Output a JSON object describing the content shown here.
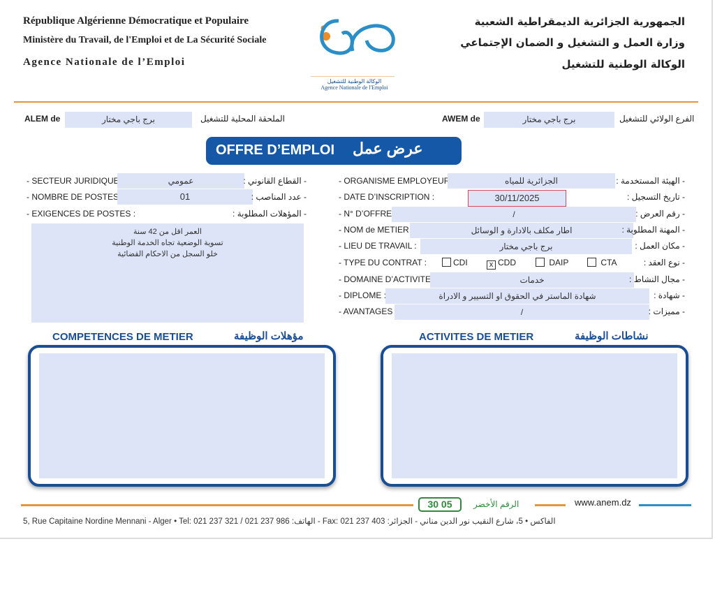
{
  "header": {
    "left_lines": [
      "République Algérienne Démocratique et Populaire",
      "Ministère du Travail, de l'Emploi et de La Sécurité Sociale",
      "Agence  Nationale  de  l’Emploi"
    ],
    "right_lines": [
      "الجمهورية الجزائرية الديمقراطية الشعبية",
      "وزارة العمل و التشغيل و الضمان الإجتماعي",
      "الوكالة الوطنية للتشغيل"
    ],
    "logo_ar": "الوكالة الوطنية للتشغيل",
    "logo_fr": "Agence Nationale de l'Emploi"
  },
  "colors": {
    "brand_blue": "#1a4e94",
    "accent_orange": "#e8943a",
    "field_fill": "#dde4f8",
    "green": "#2e8b3a"
  },
  "alem": {
    "label_fr": "ALEM de",
    "value": "برج باجي مختار",
    "label_ar": "الملحقة المحلية للتشغيل"
  },
  "awem": {
    "label_fr": "AWEM de",
    "value": "برج باجي مختار",
    "label_ar": "الفرع الولائي للتشغيل"
  },
  "title": {
    "fr": "OFFRE D’EMPLOI",
    "ar": "عرض عمل"
  },
  "left": {
    "secteur": {
      "label_fr": "- SECTEUR JURIDIQUE :",
      "label_ar": "- القطاع القانوني :",
      "value": "عمومي"
    },
    "postes": {
      "label_fr": "- NOMBRE DE POSTES :",
      "label_ar": "- عدد المناصب :",
      "value": "01"
    },
    "exigences": {
      "label_fr": "- EXIGENCES DE POSTES :",
      "label_ar": "- المؤهلات المطلوبة :",
      "lines": [
        "العمر اقل من 42 سنة",
        "تسوية الوضعية تجاه الخدمة الوطنية",
        "خلو السجل من الاحكام القضائية"
      ]
    }
  },
  "right": {
    "organisme": {
      "label_fr": "- ORGANISME EMPLOYEUR :",
      "label_ar": "- الهيئة المستخدمة :",
      "value": "الجزائرية للمياه"
    },
    "date": {
      "label_fr": "- DATE D’INSCRIPTION :",
      "label_ar": "- تاريخ التسجيل :",
      "value": "30/11/2025"
    },
    "offre": {
      "label_fr": "- N° D’OFFRE :",
      "label_ar": "- رقم العرض :",
      "value": "/"
    },
    "metier": {
      "label_fr": "- NOM de METIER :",
      "label_ar": "- المهنة المطلوبة :",
      "value": "اطار مكلف بالادارة و الوسائل"
    },
    "lieu": {
      "label_fr": "- LIEU DE TRAVAIL :",
      "label_ar": "- مكان العمل :",
      "value": "برج باجي مختار"
    },
    "contrat": {
      "label_fr": "- TYPE DU CONTRAT :",
      "label_ar": "- نوع العقد :",
      "options": [
        {
          "label": "CDI",
          "checked": false
        },
        {
          "label": "CDD",
          "checked": true
        },
        {
          "label": "DAIP",
          "checked": false
        },
        {
          "label": "CTA",
          "checked": false
        }
      ],
      "mark": "x"
    },
    "domaine": {
      "label_fr": "- DOMAINE D’ACTIVITE :",
      "label_ar": "- مجال النشاط :",
      "value": "خدمات"
    },
    "diplome": {
      "label_fr": "- DIPLOME :",
      "label_ar": "- شهادة :",
      "value": "شهادة  الماستر في الحقوق او التسيير و الادراة"
    },
    "avantages": {
      "label_fr": "- AVANTAGES :",
      "label_ar": "- مميزات :",
      "value": "/"
    }
  },
  "competences": {
    "fr": "COMPETENCES DE METIER",
    "ar": "مؤهلات الوظيفة"
  },
  "activites": {
    "fr": "ACTIVITES DE METIER",
    "ar": "نشاطات الوظيفة"
  },
  "footer": {
    "green_number": "30 05",
    "green_label": "الرقم الأخضر",
    "website": "www.anem.dz",
    "address": "5, Rue  Capitaine  Nordine  Mennani  -  Alger • Tel: 021 237 321 / 021 237 986 :الهاتف - Fax: 021 237 403 :الفاكس • 5، شارع النقيب نور الدين مناني - الجزائر"
  }
}
